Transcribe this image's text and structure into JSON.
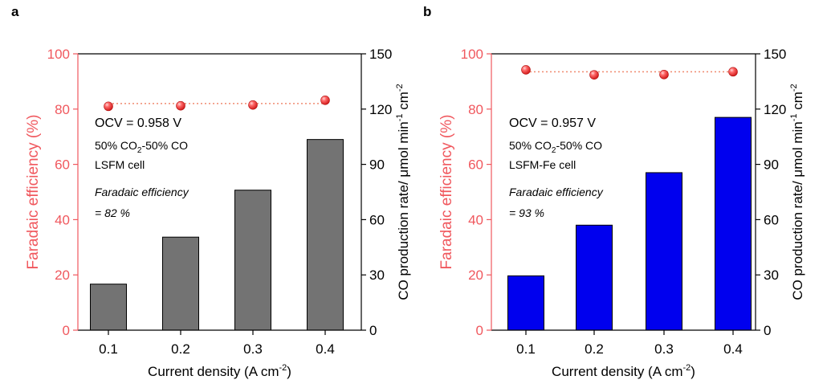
{
  "chart_data": [
    {
      "type": "bar",
      "panel_label": "a",
      "categories": [
        "0.1",
        "0.2",
        "0.3",
        "0.4"
      ],
      "xlabel": {
        "prefix": "Current density (A cm",
        "sup": "-2",
        "suffix": ")"
      },
      "ylabel_left": "Faradaic efficiency (%)",
      "ylabel_right": {
        "part1": "CO production rate/  μmol min",
        "sup1": "-1",
        "part2": " cm",
        "sup2": "-2"
      },
      "ylim_left": [
        0,
        100
      ],
      "ylim_right": [
        0,
        150
      ],
      "yticks_left": [
        "0",
        "20",
        "40",
        "60",
        "80",
        "100"
      ],
      "yticks_right": [
        "0",
        "30",
        "60",
        "90",
        "120",
        "150"
      ],
      "series": [
        {
          "axis": "right",
          "kind": "bar",
          "values": [
            25,
            50.5,
            76,
            103.5
          ]
        },
        {
          "axis": "left",
          "kind": "scatter-line",
          "values": [
            81,
            81.2,
            81.5,
            83.2
          ],
          "line_level": 82
        }
      ],
      "annotations": {
        "ocv": "OCV = 0.958 V",
        "gas": {
          "prefix": "50% CO",
          "sub": "2",
          "suffix": "-50% CO"
        },
        "cell": "LSFM cell",
        "fe_label": "Faradaic efficiency",
        "fe_value": "= 82 %"
      },
      "colors": {
        "bar": "#737373",
        "marker": "#ee3333",
        "line": "#f08b70",
        "left_axis": "#f0585e"
      }
    },
    {
      "type": "bar",
      "panel_label": "b",
      "categories": [
        "0.1",
        "0.2",
        "0.3",
        "0.4"
      ],
      "xlabel": {
        "prefix": "Current density (A cm",
        "sup": "-2",
        "suffix": ")"
      },
      "ylabel_left": "Faradaic efficiency (%)",
      "ylabel_right": {
        "part1": "CO production rate/  μmol min",
        "sup1": "-1",
        "part2": " cm",
        "sup2": "-2"
      },
      "ylim_left": [
        0,
        100
      ],
      "ylim_right": [
        0,
        150
      ],
      "yticks_left": [
        "0",
        "20",
        "40",
        "60",
        "80",
        "100"
      ],
      "yticks_right": [
        "0",
        "30",
        "60",
        "90",
        "120",
        "150"
      ],
      "series": [
        {
          "axis": "right",
          "kind": "bar",
          "values": [
            29.5,
            57,
            85.5,
            115.5
          ]
        },
        {
          "axis": "left",
          "kind": "scatter-line",
          "values": [
            94.2,
            92.4,
            92.5,
            93.5
          ],
          "line_level": 93.5
        }
      ],
      "annotations": {
        "ocv": "OCV = 0.957 V",
        "gas": {
          "prefix": "50% CO",
          "sub": "2",
          "suffix": "-50% CO"
        },
        "cell": "LSFM-Fe cell",
        "fe_label": "Faradaic efficiency",
        "fe_value": "= 93 %"
      },
      "colors": {
        "bar": "#0000ee",
        "marker": "#ee3333",
        "line": "#f08b70",
        "left_axis": "#f0585e"
      }
    }
  ]
}
